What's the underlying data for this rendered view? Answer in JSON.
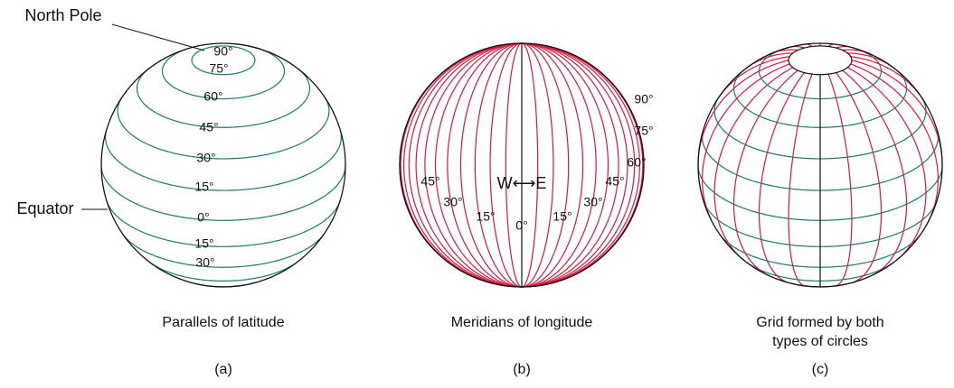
{
  "panels": [
    {
      "caption": [
        "Parallels of latitude"
      ],
      "tag": "(a)",
      "callouts": [
        "North Pole",
        "Equator"
      ],
      "labels": [
        "90°",
        "75°",
        "60°",
        "45°",
        "30°",
        "15°",
        "0°",
        "15°",
        "30°"
      ]
    },
    {
      "caption": [
        "Meridians of longitude"
      ],
      "tag": "(b)",
      "direction": "W⟷E",
      "labels": [
        "90°",
        "75°",
        "60°",
        "45°",
        "30°",
        "15°",
        "0°",
        "15°",
        "30°",
        "45°"
      ]
    },
    {
      "caption": [
        "Grid formed by both",
        "types of circles"
      ],
      "tag": "(c)"
    }
  ]
}
